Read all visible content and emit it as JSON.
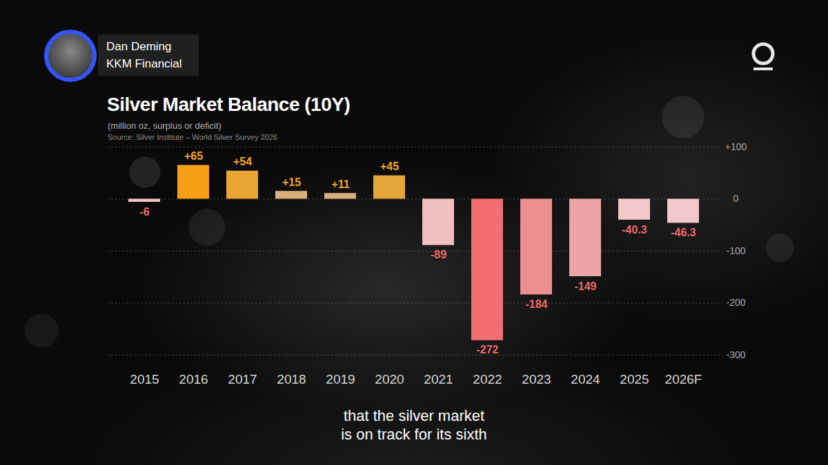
{
  "chart_data": {
    "type": "bar",
    "title": "Silver Market Balance (10Y)",
    "subtitle": "(million oz, surplus or deficit)",
    "source": "Source: Silver Institute – World Silver Survey 2026",
    "categories": [
      "2015",
      "2016",
      "2017",
      "2018",
      "2019",
      "2020",
      "2021",
      "2022",
      "2023",
      "2024",
      "2025",
      "2026F"
    ],
    "values": [
      -6,
      65,
      54,
      15,
      11,
      45,
      -89,
      -272,
      -184,
      -149,
      -40.3,
      -46.3
    ],
    "value_labels": [
      "-6",
      "+65",
      "+54",
      "+15",
      "+11",
      "+45",
      "-89",
      "-272",
      "-184",
      "-149",
      "-40.3",
      "-46.3"
    ],
    "colors": [
      "#f2c4c6",
      "#f59e16",
      "#e8a534",
      "#d8b07a",
      "#d8b07a",
      "#e5a63c",
      "#f0c0c2",
      "#f26f6f",
      "#ec8f90",
      "#eca4a6",
      "#f3c8ca",
      "#f3c8ca"
    ],
    "ylim": [
      -300,
      100
    ],
    "yticks": [
      {
        "value": 100,
        "label": "+100"
      },
      0,
      -100,
      -200,
      -300
    ],
    "grid": true,
    "data_labels": true
  },
  "speaker": {
    "name": "Dan Deming",
    "firm": "KKM Financial"
  },
  "caption": [
    "that the silver market",
    "is on track for its sixth"
  ]
}
